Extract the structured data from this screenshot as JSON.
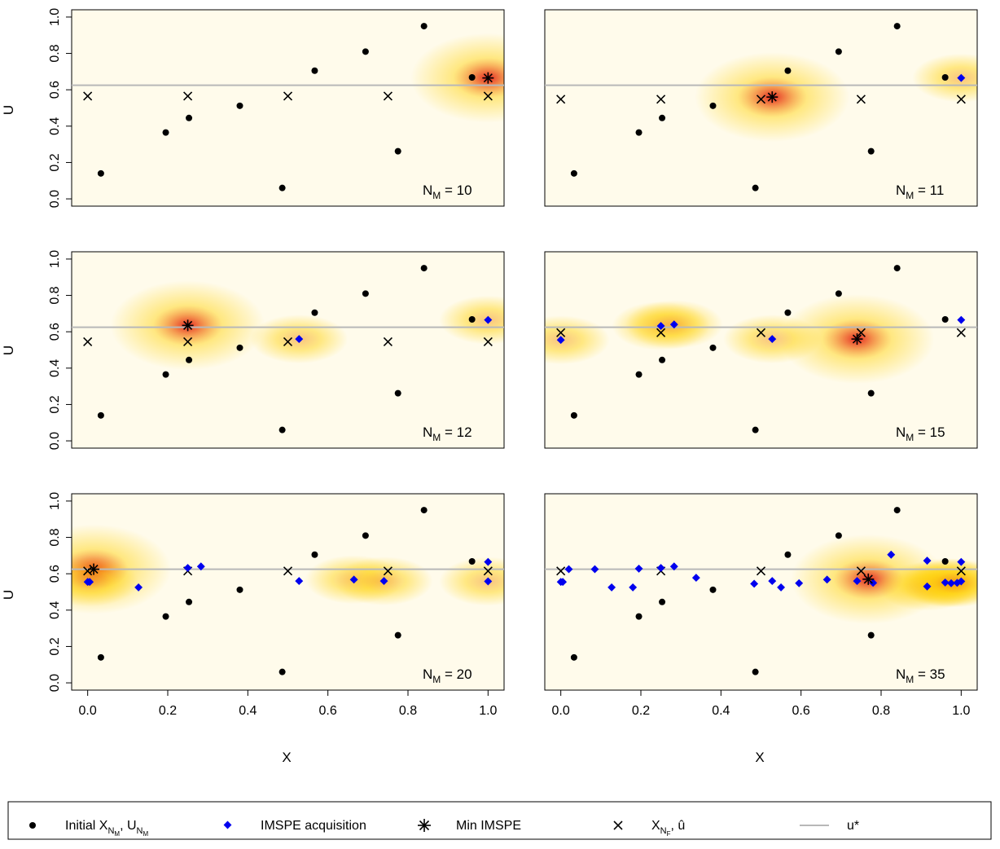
{
  "figure": {
    "ylabel": "U",
    "xlabel": "X"
  },
  "legend": {
    "initial": "Initial X",
    "initial_sub": "N",
    "initial_subsub": "M",
    "initial_sep": ", U",
    "acq": "IMSPE acquisition",
    "minimspe": "Min IMSPE",
    "xnf": "X",
    "xnf_sub": "N",
    "xnf_subsub": "F",
    "xnf_sep": ", ",
    "uhat": "û",
    "ustar": "u*"
  },
  "colors": {
    "heat_low": "#ffffff",
    "heat_mid": "#ffd000",
    "heat_high": "#e00000",
    "points": "#000000",
    "acquisition": "#0000ee",
    "ustar_line": "#b8b8b8"
  },
  "chart_data": {
    "type": "scatter",
    "background": "heatmap (IMSPE surface, white-yellow-red)",
    "xlim": [
      0,
      1
    ],
    "ylim": [
      0,
      1
    ],
    "x_ticks": [
      "0.0",
      "0.2",
      "0.4",
      "0.6",
      "0.8",
      "1.0"
    ],
    "y_ticks": [
      "0.0",
      "0.2",
      "0.4",
      "0.6",
      "0.8",
      "1.0"
    ],
    "u_star": 0.625,
    "initial_points": [
      [
        0.033,
        0.14
      ],
      [
        0.195,
        0.365
      ],
      [
        0.253,
        0.445
      ],
      [
        0.38,
        0.512
      ],
      [
        0.486,
        0.06
      ],
      [
        0.567,
        0.705
      ],
      [
        0.694,
        0.81
      ],
      [
        0.775,
        0.262
      ],
      [
        0.84,
        0.95
      ],
      [
        0.96,
        0.668
      ]
    ],
    "panels": [
      {
        "label": "N",
        "label_sub": "M",
        "label_eq": " = 10",
        "x_nf": [
          0,
          0.25,
          0.5,
          0.75,
          1.0
        ],
        "u_hat": 0.565,
        "acquisitions": [],
        "min_imspe": [
          1.0,
          0.665
        ]
      },
      {
        "label": "N",
        "label_sub": "M",
        "label_eq": " = 11",
        "x_nf": [
          0,
          0.25,
          0.5,
          0.75,
          1.0
        ],
        "u_hat": 0.548,
        "acquisitions": [
          [
            1.0,
            0.665
          ]
        ],
        "min_imspe": [
          0.528,
          0.56
        ]
      },
      {
        "label": "N",
        "label_sub": "M",
        "label_eq": " = 12",
        "x_nf": [
          0,
          0.25,
          0.5,
          0.75,
          1.0
        ],
        "u_hat": 0.545,
        "acquisitions": [
          [
            1.0,
            0.665
          ],
          [
            0.528,
            0.56
          ]
        ],
        "min_imspe": [
          0.25,
          0.635
        ]
      },
      {
        "label": "N",
        "label_sub": "M",
        "label_eq": " = 15",
        "x_nf": [
          0,
          0.25,
          0.5,
          0.75,
          1.0
        ],
        "u_hat": 0.595,
        "acquisitions": [
          [
            1.0,
            0.665
          ],
          [
            0.528,
            0.56
          ],
          [
            0.25,
            0.632
          ],
          [
            0.283,
            0.64
          ],
          [
            0.0,
            0.555
          ]
        ],
        "min_imspe": [
          0.74,
          0.56
        ]
      },
      {
        "label": "N",
        "label_sub": "M",
        "label_eq": " = 20",
        "x_nf": [
          0,
          0.25,
          0.5,
          0.75,
          1.0
        ],
        "u_hat": 0.615,
        "acquisitions": [
          [
            1.0,
            0.665
          ],
          [
            0.528,
            0.56
          ],
          [
            0.25,
            0.632
          ],
          [
            0.283,
            0.64
          ],
          [
            0.0,
            0.555
          ],
          [
            0.127,
            0.525
          ],
          [
            0.665,
            0.568
          ],
          [
            0.74,
            0.56
          ],
          [
            1.0,
            0.558
          ],
          [
            0.005,
            0.555
          ]
        ],
        "min_imspe": [
          0.015,
          0.625
        ]
      },
      {
        "label": "N",
        "label_sub": "M",
        "label_eq": " = 35",
        "x_nf": [
          0,
          0.25,
          0.5,
          0.75,
          1.0
        ],
        "u_hat": 0.615,
        "acquisitions": [
          [
            1.0,
            0.665
          ],
          [
            0.528,
            0.56
          ],
          [
            0.25,
            0.632
          ],
          [
            0.283,
            0.64
          ],
          [
            0.0,
            0.555
          ],
          [
            0.127,
            0.525
          ],
          [
            0.665,
            0.568
          ],
          [
            0.74,
            0.56
          ],
          [
            1.0,
            0.558
          ],
          [
            0.005,
            0.555
          ],
          [
            0.02,
            0.625
          ],
          [
            0.085,
            0.625
          ],
          [
            0.18,
            0.525
          ],
          [
            0.195,
            0.628
          ],
          [
            0.338,
            0.578
          ],
          [
            0.483,
            0.545
          ],
          [
            0.55,
            0.525
          ],
          [
            0.595,
            0.548
          ],
          [
            0.78,
            0.55
          ],
          [
            0.825,
            0.705
          ],
          [
            0.915,
            0.672
          ],
          [
            0.915,
            0.53
          ],
          [
            0.96,
            0.552
          ],
          [
            0.975,
            0.548
          ],
          [
            0.99,
            0.55
          ]
        ],
        "min_imspe": [
          0.768,
          0.57
        ]
      }
    ]
  }
}
